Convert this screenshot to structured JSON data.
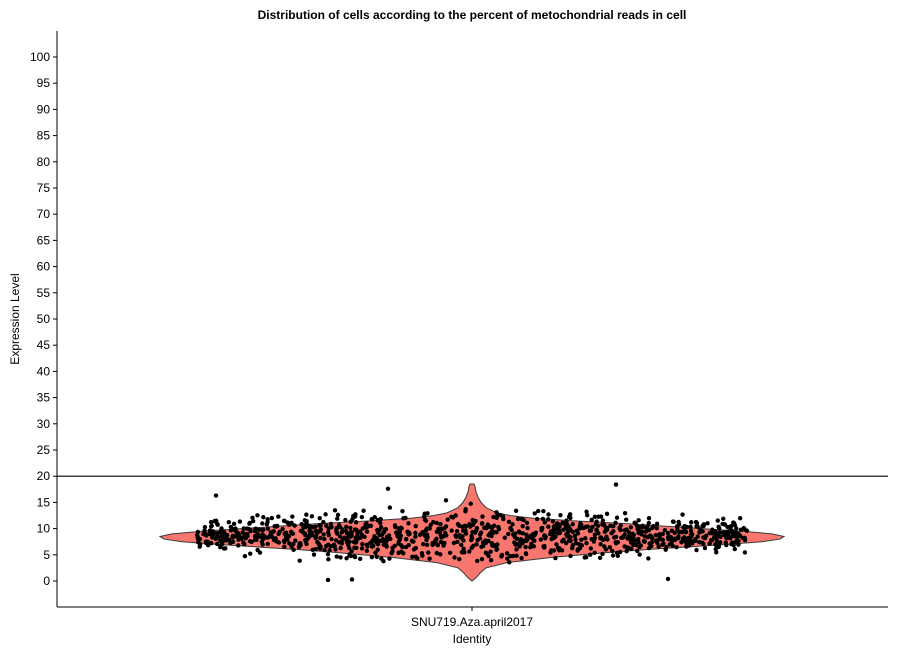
{
  "chart_data": {
    "type": "violin",
    "title": "Distribution of cells according to the percent of metochondrial reads in cell",
    "xlabel": "Identity",
    "ylabel": "Expression Level",
    "categories": [
      "SNU719.Aza.april2017"
    ],
    "ylim": [
      -5,
      105
    ],
    "yticks": [
      0,
      5,
      10,
      15,
      20,
      25,
      30,
      35,
      40,
      45,
      50,
      55,
      60,
      65,
      70,
      75,
      80,
      85,
      90,
      95,
      100
    ],
    "threshold_line": 20,
    "violin_fill": "#F8766D",
    "point_color": "#000000",
    "grid": false,
    "series": [
      {
        "category": "SNU719.Aza.april2017",
        "summary": {
          "min": 0,
          "max": 18.5,
          "median": 8.5
        },
        "outliers": [
          {
            "x_jitter": -0.72,
            "y": 0.2
          },
          {
            "x_jitter": -0.6,
            "y": 0.3
          },
          {
            "x_jitter": 0.98,
            "y": 0.4
          },
          {
            "x_jitter": -0.42,
            "y": 17.6
          },
          {
            "x_jitter": -0.13,
            "y": 15.4
          },
          {
            "x_jitter": 0.72,
            "y": 18.4
          },
          {
            "x_jitter": -1.28,
            "y": 16.3
          }
        ]
      }
    ]
  }
}
